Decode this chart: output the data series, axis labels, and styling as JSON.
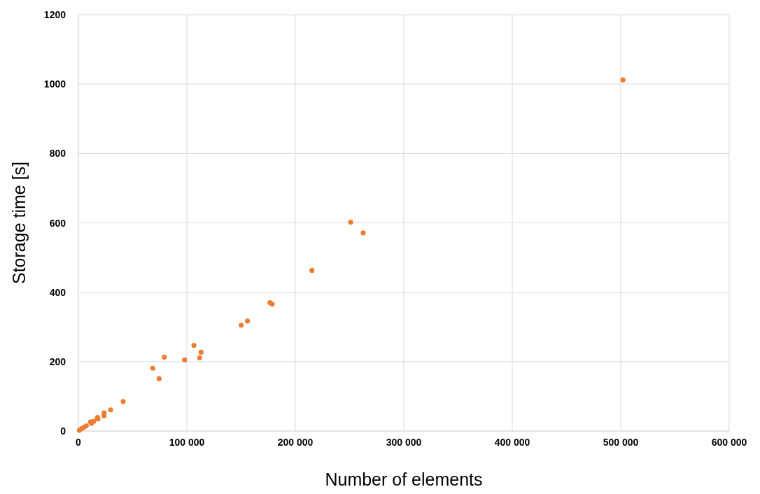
{
  "chart_data": {
    "type": "scatter",
    "xlabel": "Number of elements",
    "ylabel": "Storage time [s]",
    "x": [
      900,
      3000,
      5200,
      7300,
      11200,
      12000,
      14200,
      17600,
      18100,
      23700,
      23700,
      29700,
      41300,
      68600,
      74400,
      79200,
      97900,
      106500,
      111800,
      113100,
      150100,
      155900,
      176600,
      178700,
      215300,
      251000,
      262600,
      502000
    ],
    "series": [
      {
        "color": "#ed7d31",
        "values": [
          2,
          7,
          11,
          15,
          26,
          22,
          28,
          39,
          35,
          52,
          44,
          61,
          85,
          181,
          151,
          213,
          205,
          247,
          211,
          227,
          305,
          317,
          370,
          366,
          463,
          602,
          571,
          1012
        ]
      }
    ],
    "xlim": [
      0,
      600000
    ],
    "xticks": [
      0,
      {
        "value": 100000,
        "label": "100 000"
      },
      {
        "value": 200000,
        "label": "200 000"
      },
      {
        "value": 300000,
        "label": "300 000"
      },
      {
        "value": 400000,
        "label": "400 000"
      },
      {
        "value": 500000,
        "label": "500 000"
      },
      {
        "value": 600000,
        "label": "600 000"
      }
    ],
    "ylim": [
      0,
      1200
    ],
    "yticks": [
      0,
      200,
      400,
      600,
      800,
      1000,
      1200
    ],
    "grid": true,
    "marker": "circle"
  }
}
